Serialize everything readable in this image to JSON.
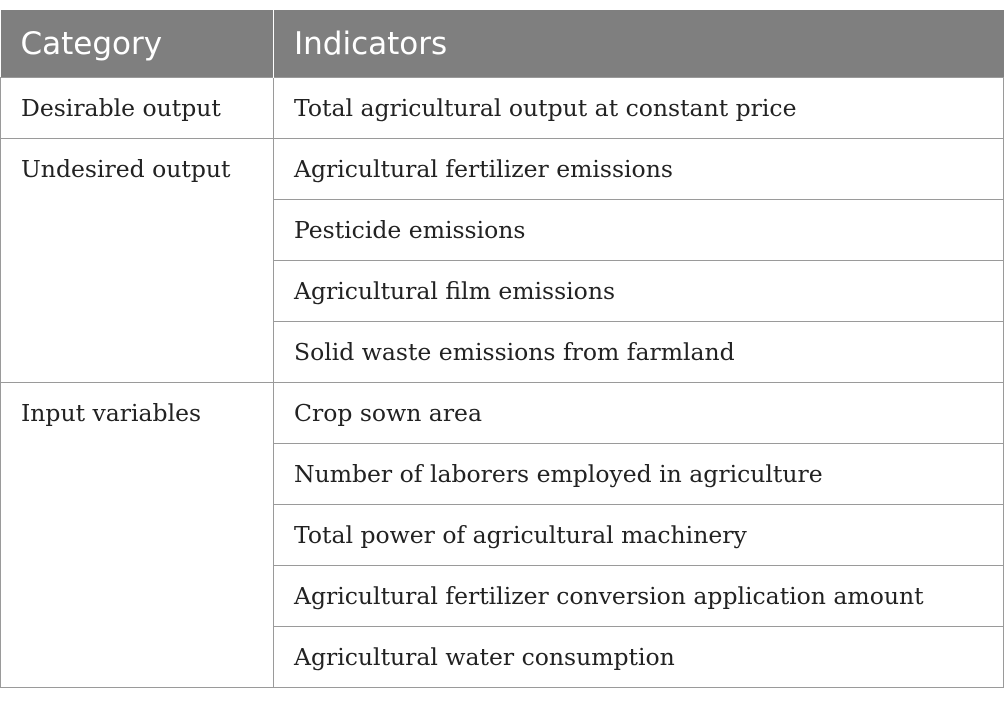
{
  "table": {
    "headers": [
      "Category",
      "Indicators"
    ],
    "groups": [
      {
        "category": "Desirable output",
        "indicators": [
          "Total agricultural output at constant price"
        ]
      },
      {
        "category": "Undesired output",
        "indicators": [
          "Agricultural fertilizer emissions",
          "Pesticide emissions",
          "Agricultural film emissions",
          "Solid waste emissions from farmland"
        ]
      },
      {
        "category": "Input variables",
        "indicators": [
          "Crop sown area",
          "Number of laborers employed in agriculture",
          "Total power of agricultural machinery",
          "Agricultural fertilizer conversion application amount",
          "Agricultural water consumption"
        ]
      }
    ]
  }
}
